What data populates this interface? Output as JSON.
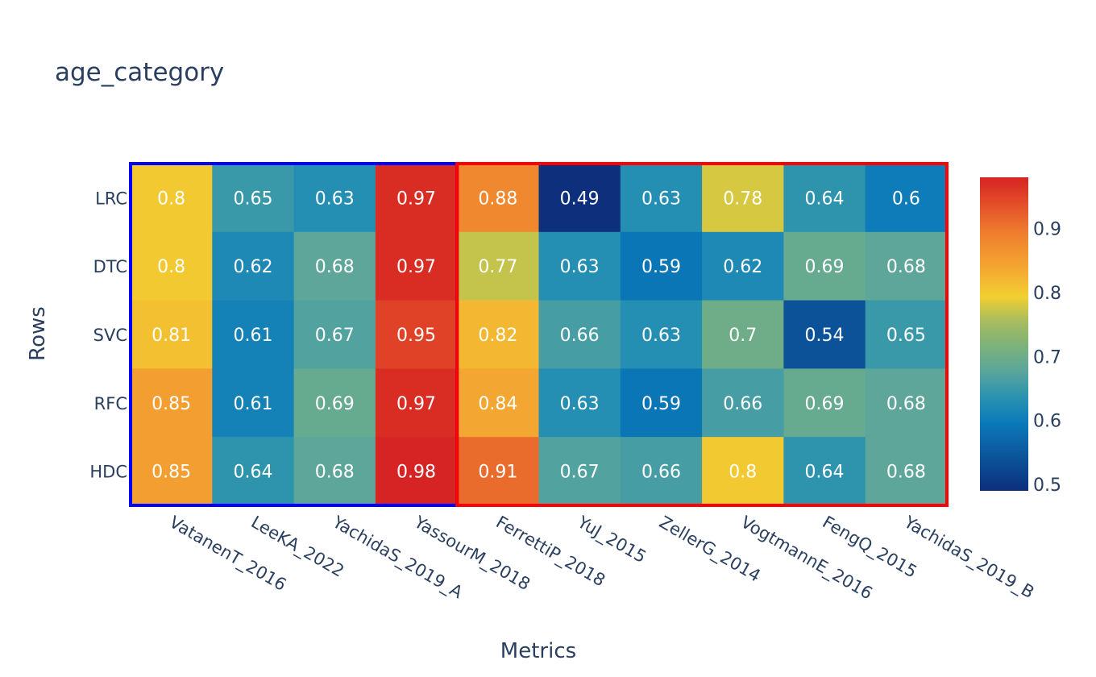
{
  "chart_data": {
    "type": "heatmap",
    "title": "age_category",
    "xlabel": "Metrics",
    "ylabel": "Rows",
    "x": [
      "VatanenT_2016",
      "LeeKA_2022",
      "YachidaS_2019_A",
      "YassourM_2018",
      "FerrettiP_2018",
      "YuJ_2015",
      "ZellerG_2014",
      "VogtmannE_2016",
      "FengQ_2015",
      "YachidaS_2019_B"
    ],
    "y": [
      "LRC",
      "DTC",
      "SVC",
      "RFC",
      "HDC"
    ],
    "z": [
      [
        0.8,
        0.65,
        0.63,
        0.97,
        0.88,
        0.49,
        0.63,
        0.78,
        0.64,
        0.6
      ],
      [
        0.8,
        0.62,
        0.68,
        0.97,
        0.77,
        0.63,
        0.59,
        0.62,
        0.69,
        0.68
      ],
      [
        0.81,
        0.61,
        0.67,
        0.95,
        0.82,
        0.66,
        0.63,
        0.7,
        0.54,
        0.65
      ],
      [
        0.85,
        0.61,
        0.69,
        0.97,
        0.84,
        0.63,
        0.59,
        0.66,
        0.69,
        0.68
      ],
      [
        0.85,
        0.64,
        0.68,
        0.98,
        0.91,
        0.67,
        0.66,
        0.8,
        0.64,
        0.68
      ]
    ],
    "zlim": [
      0.49,
      0.98
    ],
    "colorbar": {
      "ticks": [
        0.5,
        0.6,
        0.7,
        0.8,
        0.9
      ]
    },
    "colorscale": [
      [
        0.0,
        "#0d2f7c"
      ],
      [
        0.22,
        "#0b7bba"
      ],
      [
        0.3,
        "#2a93b0"
      ],
      [
        0.38,
        "#5aa59c"
      ],
      [
        0.46,
        "#7bb27a"
      ],
      [
        0.54,
        "#a6bc5e"
      ],
      [
        0.62,
        "#f2cf31"
      ],
      [
        0.7,
        "#f4ab31"
      ],
      [
        0.82,
        "#ef7f2e"
      ],
      [
        0.9,
        "#e5562a"
      ],
      [
        1.0,
        "#d62323"
      ]
    ],
    "groups": [
      {
        "from": 0,
        "to": 3,
        "color": "#0000ff"
      },
      {
        "from": 4,
        "to": 9,
        "color": "#ff0000"
      }
    ]
  }
}
